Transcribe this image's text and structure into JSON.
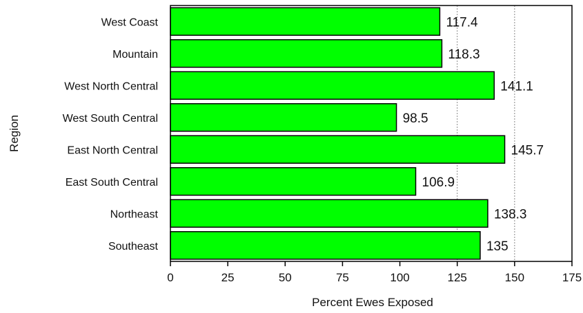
{
  "chart_data": {
    "type": "bar",
    "orientation": "horizontal",
    "title": "",
    "xlabel": "Percent Ewes Exposed",
    "ylabel": "Region",
    "categories": [
      "West Coast",
      "Mountain",
      "West North Central",
      "West South Central",
      "East North Central",
      "East South Central",
      "Northeast",
      "Southeast"
    ],
    "values": [
      117.4,
      118.3,
      141.1,
      98.5,
      145.7,
      106.9,
      138.3,
      135
    ],
    "data_labels": [
      "117.4",
      "118.3",
      "141.1",
      "98.5",
      "145.7",
      "106.9",
      "138.3",
      "135"
    ],
    "xlim": [
      0,
      175
    ],
    "x_ticks": [
      0,
      25,
      50,
      75,
      100,
      125,
      150,
      175
    ],
    "x_tick_labels": [
      "0",
      "25",
      "50",
      "75",
      "100",
      "125",
      "150",
      "175"
    ],
    "gridlines": [
      125,
      150
    ],
    "grid": "dotted vertical lines at 125 and 150",
    "bar_color": "#00ff00",
    "bar_edge_color": "#000000",
    "legend": "none"
  }
}
